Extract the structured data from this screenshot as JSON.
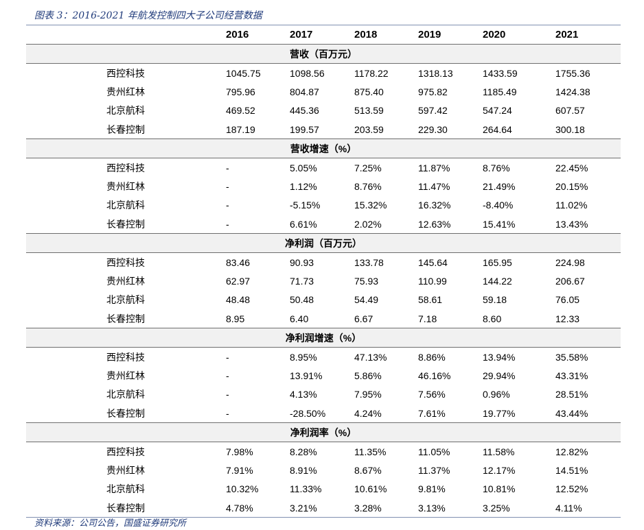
{
  "caption": "图表 3：2016-2021 年航发控制四大子公司经营数据",
  "source": "资料来源：公司公告，国盛证券研究所",
  "years": [
    "2016",
    "2017",
    "2018",
    "2019",
    "2020",
    "2021"
  ],
  "sections": [
    {
      "title": "营收（百万元）",
      "rows": [
        {
          "name": "西控科技",
          "values": [
            "1045.75",
            "1098.56",
            "1178.22",
            "1318.13",
            "1433.59",
            "1755.36"
          ]
        },
        {
          "name": "贵州红林",
          "values": [
            "795.96",
            "804.87",
            "875.40",
            "975.82",
            "1185.49",
            "1424.38"
          ]
        },
        {
          "name": "北京航科",
          "values": [
            "469.52",
            "445.36",
            "513.59",
            "597.42",
            "547.24",
            "607.57"
          ]
        },
        {
          "name": "长春控制",
          "values": [
            "187.19",
            "199.57",
            "203.59",
            "229.30",
            "264.64",
            "300.18"
          ]
        }
      ]
    },
    {
      "title": "营收增速（%）",
      "rows": [
        {
          "name": "西控科技",
          "values": [
            "-",
            "5.05%",
            "7.25%",
            "11.87%",
            "8.76%",
            "22.45%"
          ]
        },
        {
          "name": "贵州红林",
          "values": [
            "-",
            "1.12%",
            "8.76%",
            "11.47%",
            "21.49%",
            "20.15%"
          ]
        },
        {
          "name": "北京航科",
          "values": [
            "-",
            "-5.15%",
            "15.32%",
            "16.32%",
            "-8.40%",
            "11.02%"
          ]
        },
        {
          "name": "长春控制",
          "values": [
            "-",
            "6.61%",
            "2.02%",
            "12.63%",
            "15.41%",
            "13.43%"
          ]
        }
      ]
    },
    {
      "title": "净利润（百万元）",
      "rows": [
        {
          "name": "西控科技",
          "values": [
            "83.46",
            "90.93",
            "133.78",
            "145.64",
            "165.95",
            "224.98"
          ]
        },
        {
          "name": "贵州红林",
          "values": [
            "62.97",
            "71.73",
            "75.93",
            "110.99",
            "144.22",
            "206.67"
          ]
        },
        {
          "name": "北京航科",
          "values": [
            "48.48",
            "50.48",
            "54.49",
            "58.61",
            "59.18",
            "76.05"
          ]
        },
        {
          "name": "长春控制",
          "values": [
            "8.95",
            "6.40",
            "6.67",
            "7.18",
            "8.60",
            "12.33"
          ]
        }
      ]
    },
    {
      "title": "净利润增速（%）",
      "rows": [
        {
          "name": "西控科技",
          "values": [
            "-",
            "8.95%",
            "47.13%",
            "8.86%",
            "13.94%",
            "35.58%"
          ]
        },
        {
          "name": "贵州红林",
          "values": [
            "-",
            "13.91%",
            "5.86%",
            "46.16%",
            "29.94%",
            "43.31%"
          ]
        },
        {
          "name": "北京航科",
          "values": [
            "-",
            "4.13%",
            "7.95%",
            "7.56%",
            "0.96%",
            "28.51%"
          ]
        },
        {
          "name": "长春控制",
          "values": [
            "-",
            "-28.50%",
            "4.24%",
            "7.61%",
            "19.77%",
            "43.44%"
          ]
        }
      ]
    },
    {
      "title": "净利润率（%）",
      "rows": [
        {
          "name": "西控科技",
          "values": [
            "7.98%",
            "8.28%",
            "11.35%",
            "11.05%",
            "11.58%",
            "12.82%"
          ]
        },
        {
          "name": "贵州红林",
          "values": [
            "7.91%",
            "8.91%",
            "8.67%",
            "11.37%",
            "12.17%",
            "14.51%"
          ]
        },
        {
          "name": "北京航科",
          "values": [
            "10.32%",
            "11.33%",
            "10.61%",
            "9.81%",
            "10.81%",
            "12.52%"
          ]
        },
        {
          "name": "长春控制",
          "values": [
            "4.78%",
            "3.21%",
            "3.28%",
            "3.13%",
            "3.25%",
            "4.11%"
          ]
        }
      ]
    }
  ]
}
